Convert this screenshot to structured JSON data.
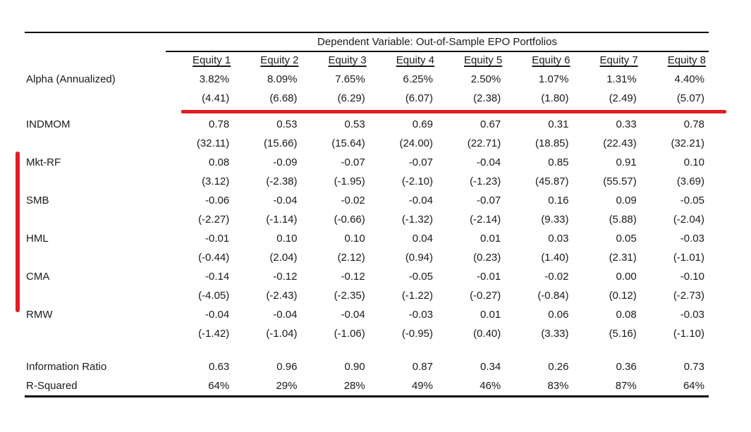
{
  "table": {
    "title": "Dependent Variable: Out-of-Sample EPO Portfolios",
    "columns": [
      "Equity 1",
      "Equity 2",
      "Equity 3",
      "Equity 4",
      "Equity 5",
      "Equity 6",
      "Equity 7",
      "Equity 8"
    ],
    "rows": [
      {
        "label": "Alpha (Annualized)",
        "values": [
          "3.82%",
          "8.09%",
          "7.65%",
          "6.25%",
          "2.50%",
          "1.07%",
          "1.31%",
          "4.40%"
        ],
        "tstats": [
          "(4.41)",
          "(6.68)",
          "(6.29)",
          "(6.07)",
          "(2.38)",
          "(1.80)",
          "(2.49)",
          "(5.07)"
        ]
      },
      {
        "label": "INDMOM",
        "values": [
          "0.78",
          "0.53",
          "0.53",
          "0.69",
          "0.67",
          "0.31",
          "0.33",
          "0.78"
        ],
        "tstats": [
          "(32.11)",
          "(15.66)",
          "(15.64)",
          "(24.00)",
          "(22.71)",
          "(18.85)",
          "(22.43)",
          "(32.21)"
        ]
      },
      {
        "label": "Mkt-RF",
        "values": [
          "0.08",
          "-0.09",
          "-0.07",
          "-0.07",
          "-0.04",
          "0.85",
          "0.91",
          "0.10"
        ],
        "tstats": [
          "(3.12)",
          "(-2.38)",
          "(-1.95)",
          "(-2.10)",
          "(-1.23)",
          "(45.87)",
          "(55.57)",
          "(3.69)"
        ]
      },
      {
        "label": "SMB",
        "values": [
          "-0.06",
          "-0.04",
          "-0.02",
          "-0.04",
          "-0.07",
          "0.16",
          "0.09",
          "-0.05"
        ],
        "tstats": [
          "(-2.27)",
          "(-1.14)",
          "(-0.66)",
          "(-1.32)",
          "(-2.14)",
          "(9.33)",
          "(5.88)",
          "(-2.04)"
        ]
      },
      {
        "label": "HML",
        "values": [
          "-0.01",
          "0.10",
          "0.10",
          "0.04",
          "0.01",
          "0.03",
          "0.05",
          "-0.03"
        ],
        "tstats": [
          "(-0.44)",
          "(2.04)",
          "(2.12)",
          "(0.94)",
          "(0.23)",
          "(1.40)",
          "(2.31)",
          "(-1.01)"
        ]
      },
      {
        "label": "CMA",
        "values": [
          "-0.14",
          "-0.12",
          "-0.12",
          "-0.05",
          "-0.01",
          "-0.02",
          "0.00",
          "-0.10"
        ],
        "tstats": [
          "(-4.05)",
          "(-2.43)",
          "(-2.35)",
          "(-1.22)",
          "(-0.27)",
          "(-0.84)",
          "(0.12)",
          "(-2.73)"
        ]
      },
      {
        "label": "RMW",
        "values": [
          "-0.04",
          "-0.04",
          "-0.04",
          "-0.03",
          "0.01",
          "0.06",
          "0.08",
          "-0.03"
        ],
        "tstats": [
          "(-1.42)",
          "(-1.04)",
          "(-1.06)",
          "(-0.95)",
          "(0.40)",
          "(3.33)",
          "(5.16)",
          "(-1.10)"
        ]
      }
    ],
    "summary_rows": [
      {
        "label": "Information Ratio",
        "values": [
          "0.63",
          "0.96",
          "0.90",
          "0.87",
          "0.34",
          "0.26",
          "0.36",
          "0.73"
        ]
      },
      {
        "label": "R-Squared",
        "values": [
          "64%",
          "29%",
          "28%",
          "49%",
          "46%",
          "83%",
          "87%",
          "64%"
        ]
      }
    ]
  },
  "annotations": {
    "red_color": "#e11d22",
    "red_underline_after_row_index": 0,
    "red_sidebar_from_row": "Mkt-RF",
    "red_sidebar_to_row": "RMW"
  }
}
